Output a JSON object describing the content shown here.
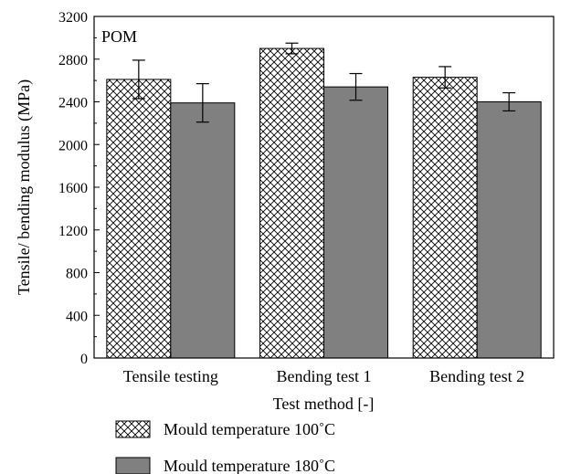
{
  "chart_data": {
    "type": "bar",
    "annotation": "POM",
    "xlabel": "Test method [-]",
    "ylabel": "Tensile/ bending modulus (MPa)",
    "ylim": [
      0,
      3200
    ],
    "yticks": [
      0,
      400,
      800,
      1200,
      1600,
      2000,
      2400,
      2800,
      3200
    ],
    "categories": [
      "Tensile testing",
      "Bending test 1",
      "Bending test 2"
    ],
    "series": [
      {
        "name": "Mould temperature 100˚C",
        "pattern": "crosshatch",
        "color": "#ffffff",
        "values": [
          2610,
          2900,
          2630
        ],
        "errors": [
          180,
          50,
          100
        ]
      },
      {
        "name": "Mould temperature 180˚C",
        "pattern": "solid",
        "color": "#808080",
        "values": [
          2390,
          2540,
          2400
        ],
        "errors": [
          180,
          125,
          85
        ]
      }
    ],
    "legend_position": "bottom-left",
    "grid": false
  }
}
